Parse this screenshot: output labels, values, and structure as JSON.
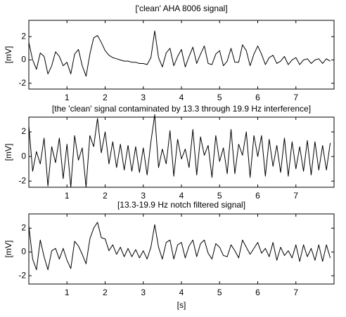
{
  "chart_data": [
    {
      "type": "line",
      "title": "['clean' AHA 8006 signal]",
      "ylabel": "[mV]",
      "color": "#000000",
      "xlim": [
        0,
        8
      ],
      "ylim": [
        -2.5,
        3.4
      ],
      "xticks": [
        1,
        2,
        3,
        4,
        5,
        6,
        7
      ],
      "yticks": [
        -2,
        0,
        2
      ],
      "x": [
        0,
        0.1,
        0.2,
        0.3,
        0.4,
        0.5,
        0.6,
        0.7,
        0.8,
        0.9,
        1,
        1.1,
        1.2,
        1.3,
        1.4,
        1.5,
        1.6,
        1.7,
        1.8,
        1.9,
        2,
        2.1,
        2.2,
        2.3,
        2.4,
        2.5,
        2.6,
        2.7,
        2.8,
        2.9,
        3,
        3.1,
        3.2,
        3.3,
        3.4,
        3.5,
        3.6,
        3.7,
        3.8,
        3.9,
        4,
        4.1,
        4.2,
        4.3,
        4.4,
        4.5,
        4.6,
        4.7,
        4.8,
        4.9,
        5,
        5.1,
        5.2,
        5.3,
        5.4,
        5.5,
        5.6,
        5.7,
        5.8,
        5.9,
        6,
        6.1,
        6.2,
        6.3,
        6.4,
        6.5,
        6.6,
        6.7,
        6.8,
        6.9,
        7,
        7.1,
        7.2,
        7.3,
        7.4,
        7.5,
        7.6,
        7.7,
        7.8,
        7.9
      ],
      "values": [
        1.5,
        0,
        -0.8,
        0.6,
        0.3,
        -1.2,
        -0.5,
        0.7,
        0.3,
        -0.5,
        -0.2,
        -1.2,
        0.5,
        0.9,
        -0.5,
        -1.4,
        0.5,
        1.9,
        2.1,
        1.5,
        0.8,
        0.4,
        0.2,
        0.1,
        0,
        -0.1,
        -0.1,
        -0.2,
        -0.2,
        -0.3,
        -0.3,
        -0.4,
        0.2,
        2.5,
        0.2,
        -0.6,
        0.6,
        1,
        -0.5,
        0.3,
        0.9,
        -0.6,
        0.3,
        1.1,
        -0.3,
        0.5,
        1.2,
        -0.3,
        -0.4,
        0.5,
        0.8,
        -0.5,
        -0.1,
        1,
        -0.2,
        -0.2,
        1.3,
        0.8,
        -0.5,
        0.5,
        1.2,
        0.5,
        -0.4,
        0.2,
        0.4,
        -0.3,
        -0.1,
        0.3,
        -0.4,
        0,
        0.2,
        -0.4,
        0,
        0.1,
        -0.3,
        0,
        0.1,
        -0.3,
        0.1,
        -0.1
      ]
    },
    {
      "type": "line",
      "title": "[the 'clean' signal contaminated by 13.3 through 19.9 Hz interference]",
      "ylabel": "[mV]",
      "color": "#000000",
      "xlim": [
        0,
        8
      ],
      "ylim": [
        -2.5,
        3.2
      ],
      "xticks": [
        1,
        2,
        3,
        4,
        5,
        6,
        7
      ],
      "yticks": [
        -2,
        0,
        2
      ],
      "x": [
        0,
        0.1,
        0.2,
        0.3,
        0.4,
        0.5,
        0.6,
        0.7,
        0.8,
        0.9,
        1,
        1.1,
        1.2,
        1.3,
        1.4,
        1.5,
        1.6,
        1.7,
        1.8,
        1.9,
        2,
        2.1,
        2.2,
        2.3,
        2.4,
        2.5,
        2.6,
        2.7,
        2.8,
        2.9,
        3,
        3.1,
        3.2,
        3.3,
        3.4,
        3.5,
        3.6,
        3.7,
        3.8,
        3.9,
        4,
        4.1,
        4.2,
        4.3,
        4.4,
        4.5,
        4.6,
        4.7,
        4.8,
        4.9,
        5,
        5.1,
        5.2,
        5.3,
        5.4,
        5.5,
        5.6,
        5.7,
        5.8,
        5.9,
        6,
        6.1,
        6.2,
        6.3,
        6.4,
        6.5,
        6.6,
        6.7,
        6.8,
        6.9,
        7,
        7.1,
        7.2,
        7.3,
        7.4,
        7.5,
        7.6,
        7.7,
        7.8,
        7.9
      ],
      "values": [
        2.5,
        -1.2,
        0.4,
        -0.6,
        1.5,
        -2.4,
        0.8,
        -0.5,
        1.5,
        -1.8,
        1,
        -2.5,
        1.7,
        -0.3,
        0.7,
        -2.5,
        1.7,
        0.8,
        3.1,
        0.3,
        2,
        -0.6,
        1.2,
        -0.9,
        1,
        -1.1,
        0.9,
        -1.2,
        0.8,
        -1.3,
        0.7,
        -1.5,
        1.2,
        3.4,
        -0.9,
        0.6,
        -0.6,
        2.1,
        -1.6,
        1.4,
        -0.2,
        0.6,
        -0.9,
        2.2,
        -1.5,
        1.6,
        0.1,
        0.9,
        -1.7,
        1.7,
        -0.4,
        0.7,
        -1.4,
        2.2,
        -1.4,
        1,
        0.1,
        2,
        -1.7,
        1.7,
        0,
        1.7,
        -1.6,
        1.4,
        -0.8,
        0.9,
        -1.3,
        1.5,
        -1.6,
        1.2,
        -1,
        0.8,
        -1.2,
        1.3,
        -1.5,
        1.2,
        -1.1,
        0.9,
        -1.1,
        1.1
      ]
    },
    {
      "type": "line",
      "title": "[13.3-19.9 Hz notch filtered signal]",
      "ylabel": "[mV]",
      "xlabel": "[s]",
      "color": "#000000",
      "xlim": [
        0,
        8
      ],
      "ylim": [
        -2.7,
        3.2
      ],
      "xticks": [
        1,
        2,
        3,
        4,
        5,
        6,
        7
      ],
      "yticks": [
        -2,
        0,
        2
      ],
      "x": [
        0,
        0.1,
        0.2,
        0.3,
        0.4,
        0.5,
        0.6,
        0.7,
        0.8,
        0.9,
        1,
        1.1,
        1.2,
        1.3,
        1.4,
        1.5,
        1.6,
        1.7,
        1.8,
        1.9,
        2,
        2.1,
        2.2,
        2.3,
        2.4,
        2.5,
        2.6,
        2.7,
        2.8,
        2.9,
        3,
        3.1,
        3.2,
        3.3,
        3.4,
        3.5,
        3.6,
        3.7,
        3.8,
        3.9,
        4,
        4.1,
        4.2,
        4.3,
        4.4,
        4.5,
        4.6,
        4.7,
        4.8,
        4.9,
        5,
        5.1,
        5.2,
        5.3,
        5.4,
        5.5,
        5.6,
        5.7,
        5.8,
        5.9,
        6,
        6.1,
        6.2,
        6.3,
        6.4,
        6.5,
        6.6,
        6.7,
        6.8,
        6.9,
        7,
        7.1,
        7.2,
        7.3,
        7.4,
        7.5,
        7.6,
        7.7,
        7.8,
        7.9
      ],
      "values": [
        2.2,
        -0.6,
        -1.5,
        1,
        -0.4,
        -1.5,
        0.1,
        0.3,
        -0.6,
        0.3,
        -0.7,
        -1.4,
        0.9,
        0.5,
        -0.2,
        -1,
        1.1,
        2,
        2.5,
        1.2,
        1.1,
        0.1,
        0.6,
        -0.2,
        0.4,
        -0.4,
        0.3,
        -0.4,
        0.2,
        -0.5,
        0.1,
        -0.6,
        0.4,
        2.3,
        0.4,
        -0.6,
        0.8,
        1,
        -0.6,
        0.6,
        0.8,
        -0.5,
        0.5,
        1,
        -0.4,
        0.7,
        1,
        -0.1,
        -0.6,
        0.7,
        0.4,
        -0.3,
        -0.4,
        0.6,
        0.1,
        -0.5,
        1,
        0.4,
        -0.2,
        0.3,
        0.8,
        -0.1,
        0.3,
        -0.4,
        0.8,
        -0.7,
        0.4,
        -0.3,
        0.1,
        -0.5,
        0.6,
        -0.8,
        0.6,
        -0.4,
        0.3,
        -0.7,
        0.6,
        -0.8,
        0.6,
        -0.5
      ]
    }
  ]
}
